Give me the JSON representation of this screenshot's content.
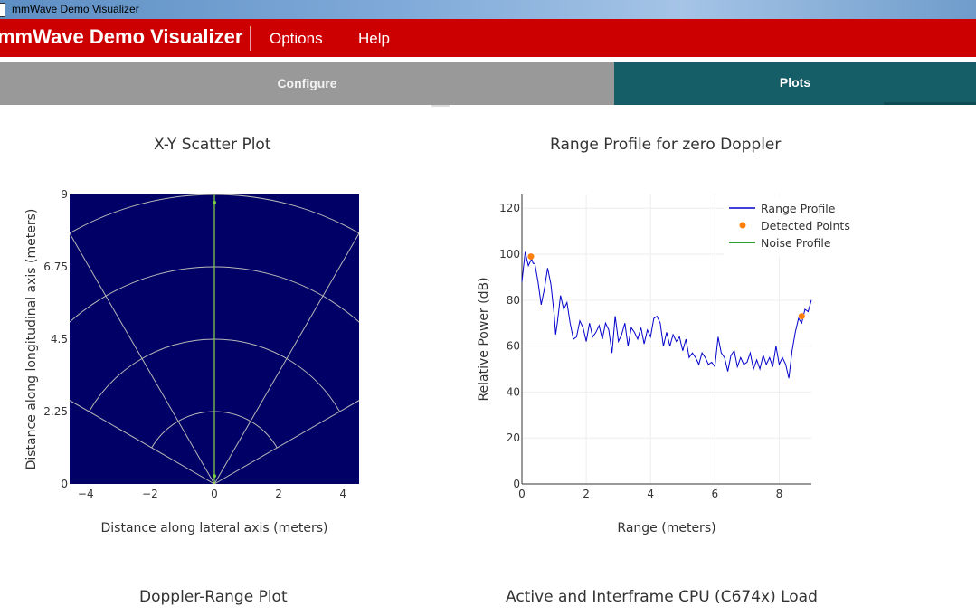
{
  "window": {
    "title": "mmWave Demo Visualizer"
  },
  "header": {
    "app_title": "mmWave Demo Visualizer",
    "menu": [
      "Options",
      "Help"
    ]
  },
  "tabs": [
    {
      "label": "Configure",
      "active": false
    },
    {
      "label": "Plots",
      "active": true
    }
  ],
  "colors": {
    "header_red": "#cc0000",
    "tab_active": "#155e67",
    "tab_inactive": "#999999",
    "scatter_bg": "#000066",
    "range_line": "#0000cc",
    "detected": "#ff7f0e",
    "noise": "#2ca02c"
  },
  "plots": {
    "scatter": {
      "title": "X-Y Scatter Plot"
    },
    "range": {
      "title": "Range Profile for zero Doppler"
    },
    "doppler": {
      "title": "Doppler-Range Plot"
    },
    "cpu": {
      "title": "Active and Interframe  CPU (C674x) Load"
    }
  },
  "chart_data": [
    {
      "type": "scatter",
      "title": "X-Y Scatter Plot",
      "xlabel": "Distance along lateral axis (meters)",
      "ylabel": "Distance along longitudinal axis (meters)",
      "xlim": [
        -4.5,
        4.5
      ],
      "ylim": [
        0,
        9
      ],
      "xticks": [
        -4,
        -2,
        0,
        2,
        4
      ],
      "xtick_labels": [
        "−4",
        "−2",
        "0",
        "2",
        "4"
      ],
      "yticks": [
        0,
        2.25,
        4.5,
        6.75,
        9
      ],
      "ytick_labels": [
        "0",
        "2.25",
        "4.5",
        "6.75",
        "9"
      ],
      "grid": "polar",
      "range_rings": [
        2.25,
        4.5,
        6.75,
        9
      ],
      "bearing_lines_deg": [
        -60,
        -30,
        0,
        30,
        60
      ],
      "points": [
        {
          "x": 0.0,
          "y": 8.75
        },
        {
          "x": 0.0,
          "y": 0.25
        }
      ]
    },
    {
      "type": "line",
      "title": "Range Profile for zero Doppler",
      "xlabel": "Range (meters)",
      "ylabel": "Relative Power (dB)",
      "xlim": [
        0,
        9
      ],
      "ylim": [
        0,
        126
      ],
      "xticks": [
        0,
        2,
        4,
        6,
        8
      ],
      "yticks": [
        0,
        20,
        40,
        60,
        80,
        100,
        120
      ],
      "grid": true,
      "legend_position": "top-right",
      "series": [
        {
          "name": "Range Profile",
          "x": [
            0.0,
            0.1,
            0.2,
            0.3,
            0.35,
            0.4,
            0.5,
            0.6,
            0.7,
            0.8,
            0.9,
            1.0,
            1.05,
            1.1,
            1.2,
            1.3,
            1.4,
            1.5,
            1.6,
            1.7,
            1.8,
            1.9,
            2.0,
            2.1,
            2.2,
            2.3,
            2.4,
            2.5,
            2.6,
            2.7,
            2.8,
            2.9,
            3.0,
            3.1,
            3.2,
            3.3,
            3.4,
            3.5,
            3.6,
            3.7,
            3.8,
            3.9,
            4.0,
            4.1,
            4.2,
            4.3,
            4.4,
            4.5,
            4.6,
            4.7,
            4.8,
            4.9,
            5.0,
            5.1,
            5.2,
            5.3,
            5.4,
            5.5,
            5.6,
            5.7,
            5.8,
            5.9,
            6.0,
            6.1,
            6.2,
            6.3,
            6.4,
            6.5,
            6.6,
            6.7,
            6.8,
            6.9,
            7.0,
            7.1,
            7.2,
            7.3,
            7.4,
            7.5,
            7.6,
            7.7,
            7.8,
            7.9,
            8.0,
            8.1,
            8.2,
            8.3,
            8.4,
            8.5,
            8.6,
            8.7,
            8.8,
            8.9,
            9.0
          ],
          "y": [
            88,
            101,
            95,
            98,
            96,
            96,
            88,
            78,
            85,
            94,
            87,
            74,
            65,
            70,
            82,
            76,
            79,
            70,
            63,
            64,
            71,
            68,
            62,
            70,
            64,
            66,
            69,
            63,
            70,
            67,
            57,
            73,
            62,
            65,
            70,
            60,
            68,
            66,
            63,
            68,
            61,
            67,
            64,
            72,
            73,
            70,
            60,
            66,
            60,
            65,
            62,
            64,
            58,
            63,
            55,
            57,
            55,
            52,
            57,
            55,
            52,
            53,
            51,
            64,
            57,
            55,
            49,
            56,
            58,
            51,
            55,
            52,
            53,
            57,
            50,
            54,
            50,
            56,
            52,
            55,
            51,
            60,
            52,
            55,
            52,
            46,
            58,
            66,
            72,
            70,
            76,
            75,
            80
          ]
        },
        {
          "name": "Detected Points",
          "x": [
            0.28,
            8.7
          ],
          "y": [
            99,
            73
          ]
        },
        {
          "name": "Noise Profile",
          "x": [],
          "y": []
        }
      ]
    }
  ]
}
